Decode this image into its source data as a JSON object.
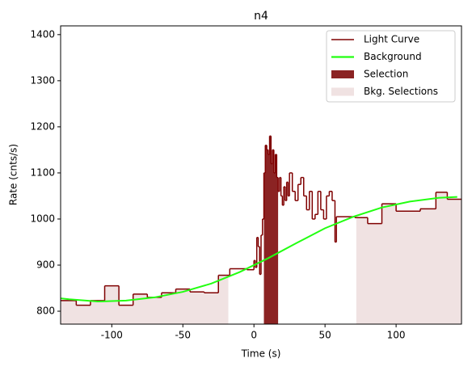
{
  "chart_data": {
    "type": "lightcurve",
    "title": "n4",
    "xlabel": "Time (s)",
    "ylabel": "Rate (cnts/s)",
    "xlim": [
      -136,
      146
    ],
    "ylim": [
      772,
      1419
    ],
    "xticks": [
      -100,
      -50,
      0,
      50,
      100
    ],
    "yticks": [
      800,
      900,
      1000,
      1100,
      1200,
      1300,
      1400
    ],
    "legend": "upper right",
    "series": [
      {
        "name": "Light Curve",
        "color": "#7f0000",
        "bins": [
          -136,
          -125,
          -115,
          -105,
          -95,
          -85,
          -75,
          -65,
          -55,
          -45,
          -35,
          -25,
          -17,
          -5,
          0,
          1,
          2,
          3,
          4,
          5,
          6,
          7,
          8,
          9,
          10,
          11,
          12,
          13,
          14,
          15,
          16,
          17,
          18,
          19,
          20,
          21,
          22,
          23,
          24,
          25,
          27,
          29,
          31,
          33,
          35,
          37,
          39,
          41,
          43,
          45,
          47,
          49,
          51,
          53,
          55,
          57,
          58,
          71,
          80,
          90,
          100,
          117,
          128,
          136,
          146
        ],
        "values": [
          823,
          813,
          823,
          855,
          813,
          837,
          830,
          840,
          848,
          842,
          840,
          878,
          892,
          890,
          910,
          895,
          960,
          940,
          880,
          965,
          1000,
          1100,
          1160,
          1150,
          1140,
          1180,
          1120,
          1150,
          1100,
          1140,
          1090,
          1060,
          1090,
          1050,
          1030,
          1070,
          1040,
          1080,
          1050,
          1100,
          1060,
          1040,
          1075,
          1090,
          1050,
          1020,
          1060,
          1000,
          1010,
          1060,
          1020,
          1000,
          1050,
          1060,
          1040,
          950,
          1005,
          1003,
          990,
          1033,
          1017,
          1022,
          1058,
          1043
        ]
      },
      {
        "name": "Background",
        "color": "#22ff11",
        "x": [
          -136,
          -130,
          -110,
          -90,
          -70,
          -50,
          -30,
          -10,
          10,
          30,
          50,
          70,
          90,
          110,
          130,
          143
        ],
        "values": [
          828,
          826,
          821,
          823,
          830,
          842,
          860,
          885,
          915,
          948,
          980,
          1005,
          1025,
          1038,
          1046,
          1048
        ]
      }
    ],
    "selection": {
      "name": "Selection",
      "color": "#8b2323",
      "range": [
        7,
        17
      ]
    },
    "bkg_selections": {
      "name": "Bkg. Selections",
      "color": "#f0e2e2",
      "ranges": [
        [
          -136,
          -18
        ],
        [
          72,
          146
        ]
      ]
    }
  }
}
